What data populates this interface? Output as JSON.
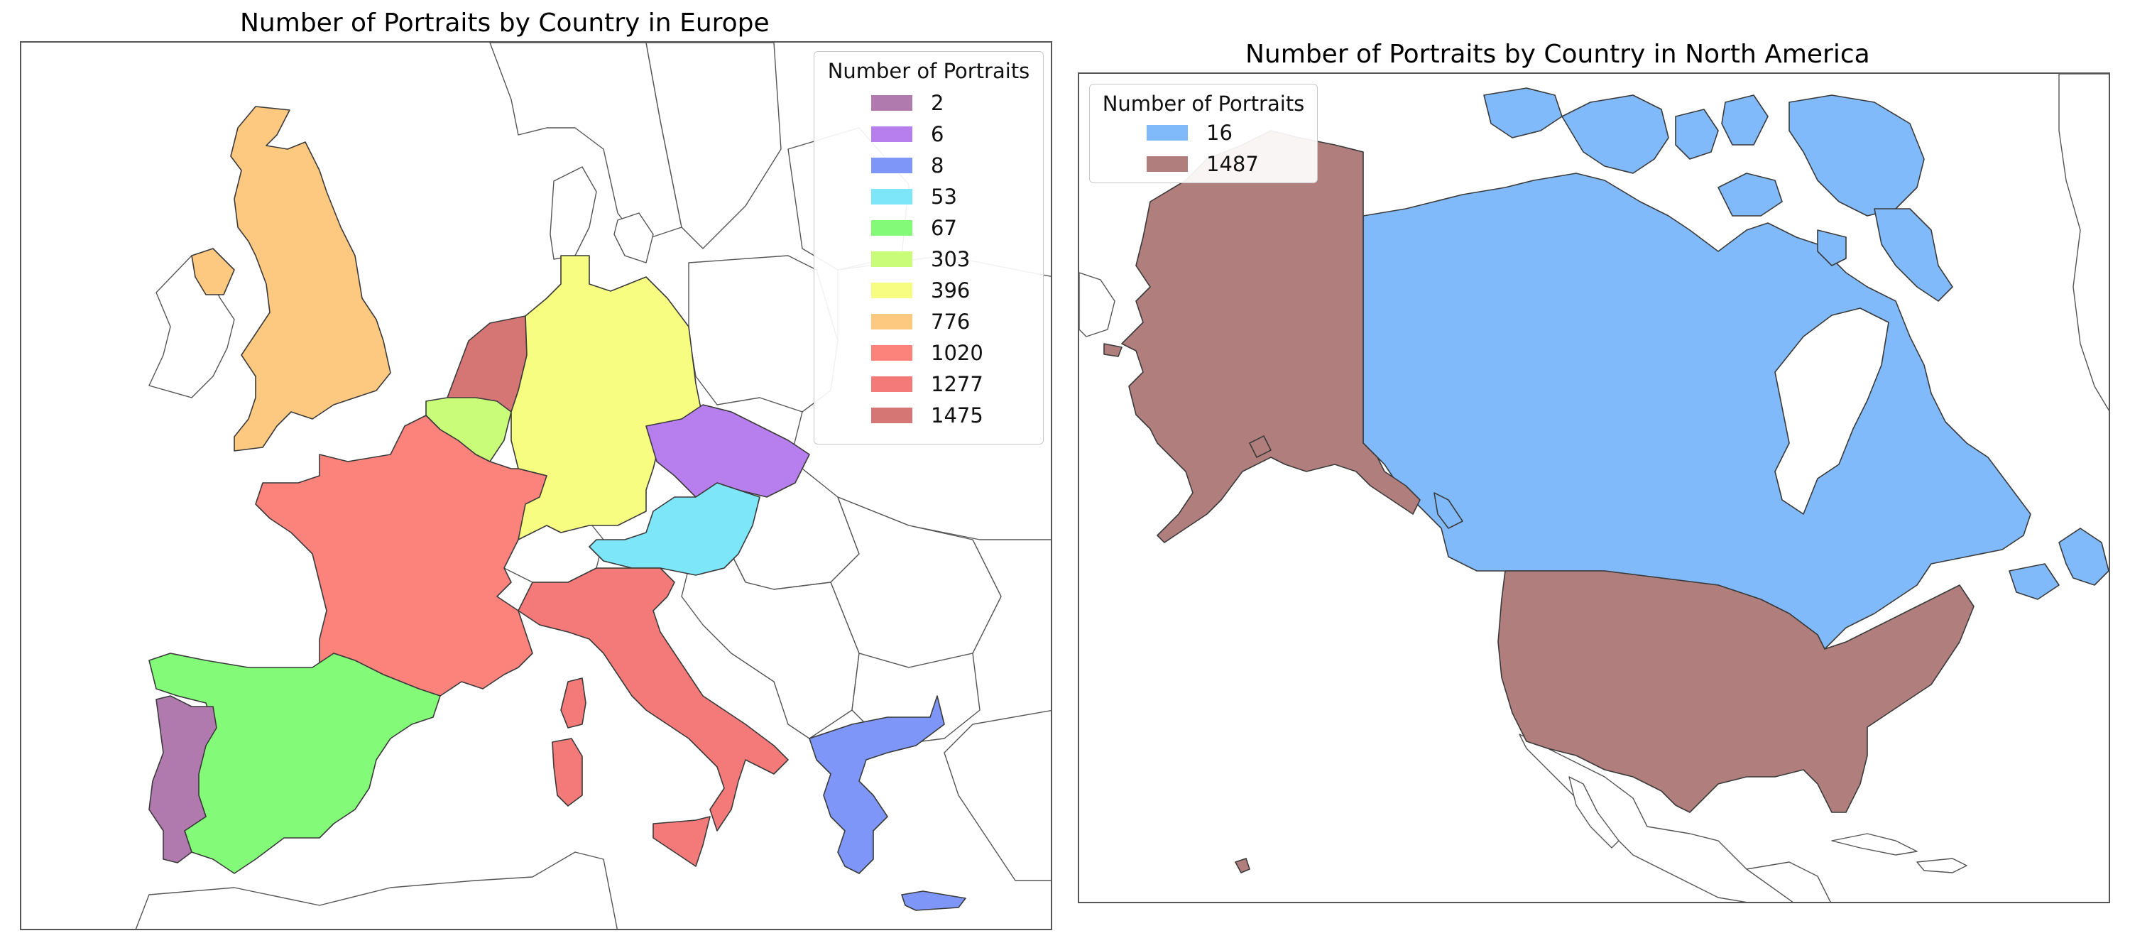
{
  "maps": {
    "europe": {
      "title": "Number of Portraits by Country in Europe",
      "legend": {
        "title": "Number of Portraits",
        "entries": [
          {
            "label": "2",
            "color": "#b07aaf"
          },
          {
            "label": "6",
            "color": "#b77eee"
          },
          {
            "label": "8",
            "color": "#7f96f9"
          },
          {
            "label": "53",
            "color": "#7ee6f9"
          },
          {
            "label": "67",
            "color": "#83fb79"
          },
          {
            "label": "303",
            "color": "#c8fc79"
          },
          {
            "label": "396",
            "color": "#f7fd80"
          },
          {
            "label": "776",
            "color": "#fdc880"
          },
          {
            "label": "1020",
            "color": "#fc827c"
          },
          {
            "label": "1277",
            "color": "#f47a7a"
          },
          {
            "label": "1475",
            "color": "#d57674"
          }
        ]
      },
      "countries": [
        {
          "name": "Portugal",
          "value": 2,
          "color": "#b07aaf"
        },
        {
          "name": "Czechia",
          "value": 6,
          "color": "#b77eee"
        },
        {
          "name": "Greece",
          "value": 8,
          "color": "#7f96f9"
        },
        {
          "name": "Austria",
          "value": 53,
          "color": "#7ee6f9"
        },
        {
          "name": "Spain",
          "value": 67,
          "color": "#83fb79"
        },
        {
          "name": "Belgium",
          "value": 303,
          "color": "#c8fc79"
        },
        {
          "name": "Germany",
          "value": 396,
          "color": "#f7fd80"
        },
        {
          "name": "United Kingdom",
          "value": 776,
          "color": "#fdc880"
        },
        {
          "name": "France",
          "value": 1020,
          "color": "#fc827c"
        },
        {
          "name": "Italy",
          "value": 1277,
          "color": "#f47a7a"
        },
        {
          "name": "Netherlands",
          "value": 1475,
          "color": "#d57674"
        }
      ]
    },
    "north_america": {
      "title": "Number of Portraits by Country in North America",
      "legend": {
        "title": "Number of Portraits",
        "entries": [
          {
            "label": "16",
            "color": "#80bafb"
          },
          {
            "label": "1487",
            "color": "#b07f7d"
          }
        ]
      },
      "countries": [
        {
          "name": "Canada",
          "value": 16,
          "color": "#80bafb"
        },
        {
          "name": "United States",
          "value": 1487,
          "color": "#b07f7d"
        }
      ]
    }
  }
}
